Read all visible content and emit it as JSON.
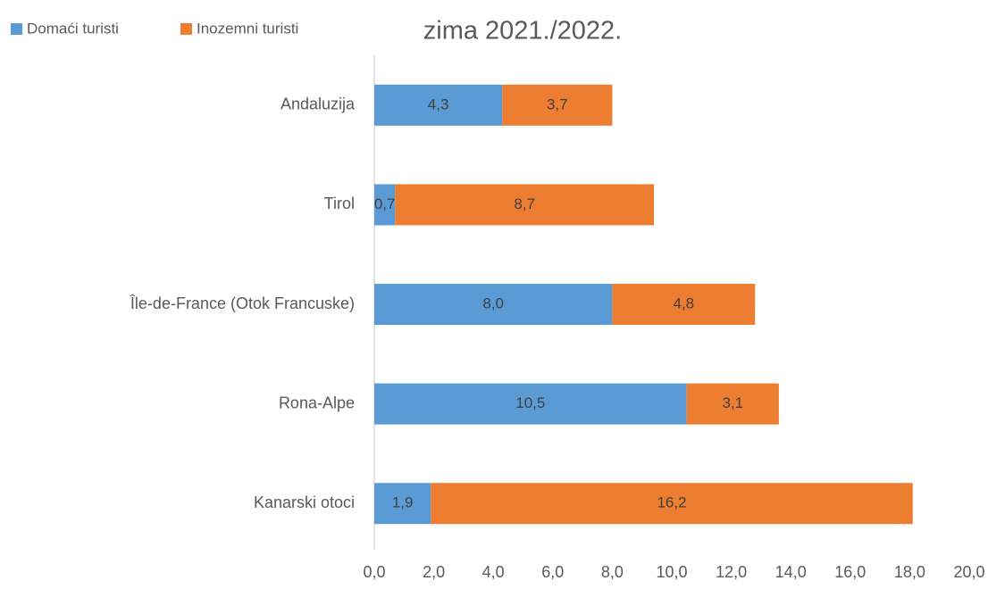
{
  "chart_data": {
    "type": "stacked-barh",
    "title": "zima 2021./2022.",
    "categories": [
      "Andaluzija",
      "Tirol",
      "Île-de-France (Otok Francuske)",
      "Rona-Alpe",
      "Kanarski otoci"
    ],
    "series": [
      {
        "name": "Domaći turisti",
        "color": "#5b9bd5",
        "values": [
          4.3,
          0.7,
          8.0,
          10.5,
          1.9
        ],
        "value_labels": [
          "4,3",
          "0,7",
          "8,0",
          "10,5",
          "1,9"
        ]
      },
      {
        "name": "Inozemni turisti",
        "color": "#ed7d31",
        "values": [
          3.7,
          8.7,
          4.8,
          3.1,
          16.2
        ],
        "value_labels": [
          "3,7",
          "8,7",
          "4,8",
          "3,1",
          "16,2"
        ]
      }
    ],
    "xlim": [
      0,
      20
    ],
    "xticks": [
      {
        "value": 0,
        "label": "0,0"
      },
      {
        "value": 2,
        "label": "2,0"
      },
      {
        "value": 4,
        "label": "4,0"
      },
      {
        "value": 6,
        "label": "6,0"
      },
      {
        "value": 8,
        "label": "8,0"
      },
      {
        "value": 10,
        "label": "10,0"
      },
      {
        "value": 12,
        "label": "12,0"
      },
      {
        "value": 14,
        "label": "14,0"
      },
      {
        "value": 16,
        "label": "16,0"
      },
      {
        "value": 18,
        "label": "18,0"
      },
      {
        "value": 20,
        "label": "20,0"
      }
    ],
    "legend": "top-left",
    "grid": false
  }
}
